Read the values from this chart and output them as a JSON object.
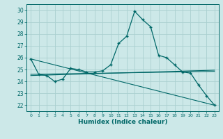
{
  "xlabel": "Humidex (Indice chaleur)",
  "background_color": "#cce8e8",
  "grid_color": "#aad0d0",
  "line_color": "#006868",
  "xlim": [
    -0.5,
    23.5
  ],
  "ylim": [
    21.5,
    30.5
  ],
  "yticks": [
    22,
    23,
    24,
    25,
    26,
    27,
    28,
    29,
    30
  ],
  "xticks": [
    0,
    1,
    2,
    3,
    4,
    5,
    6,
    7,
    8,
    9,
    10,
    11,
    12,
    13,
    14,
    15,
    16,
    17,
    18,
    19,
    20,
    21,
    22,
    23
  ],
  "series1_x": [
    0,
    1,
    2,
    3,
    4,
    5,
    6,
    7,
    8,
    9,
    10,
    11,
    12,
    13,
    14,
    15,
    16,
    17,
    18,
    19,
    20,
    21,
    22,
    23
  ],
  "series1_y": [
    25.9,
    24.6,
    24.5,
    24.0,
    24.2,
    25.1,
    25.0,
    24.8,
    24.8,
    24.9,
    25.4,
    27.2,
    27.8,
    29.9,
    29.2,
    28.6,
    26.2,
    26.0,
    25.4,
    24.8,
    24.7,
    23.7,
    22.8,
    22.0
  ],
  "series2_x": [
    0,
    23
  ],
  "series2_y": [
    25.9,
    22.0
  ],
  "series3_x": [
    0,
    23
  ],
  "series3_y": [
    24.6,
    24.85
  ],
  "series4_x": [
    0,
    23
  ],
  "series4_y": [
    24.5,
    24.95
  ]
}
